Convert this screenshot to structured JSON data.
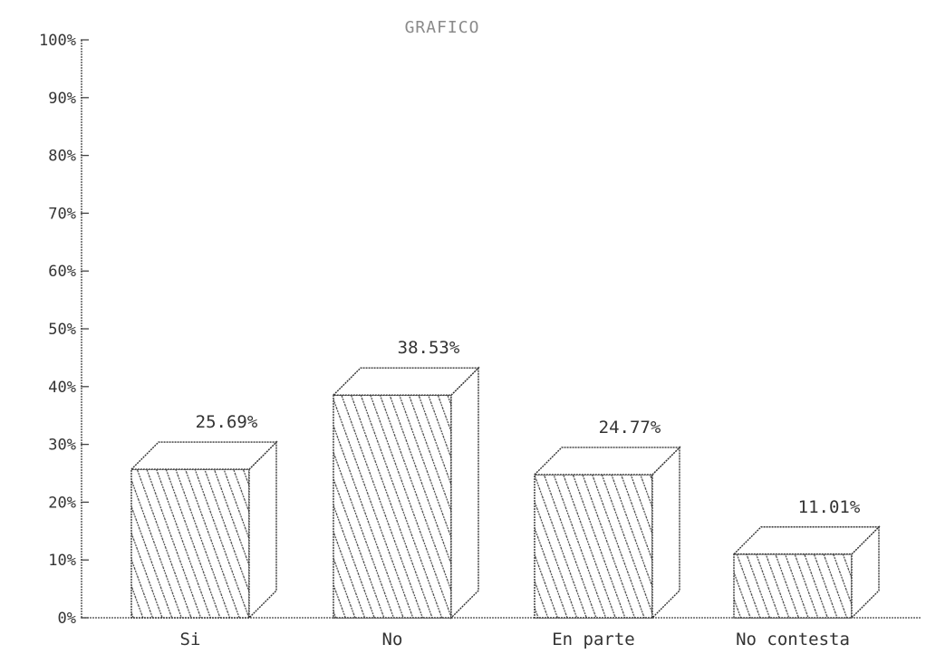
{
  "chart_data": {
    "type": "bar",
    "title": "GRAFICO",
    "categories": [
      "Si",
      "No",
      "En parte",
      "No contesta"
    ],
    "values": [
      25.69,
      38.53,
      24.77,
      11.01
    ],
    "value_labels": [
      "25.69%",
      "38.53%",
      "24.77%",
      "11.01%"
    ],
    "ylim": [
      0,
      100
    ],
    "yticks": [
      "0%",
      "10%",
      "20%",
      "30%",
      "40%",
      "50%",
      "60%",
      "70%",
      "80%",
      "90%",
      "100%"
    ],
    "xlabel": "",
    "ylabel": "",
    "grid": false,
    "style": "3d hatched bars"
  }
}
